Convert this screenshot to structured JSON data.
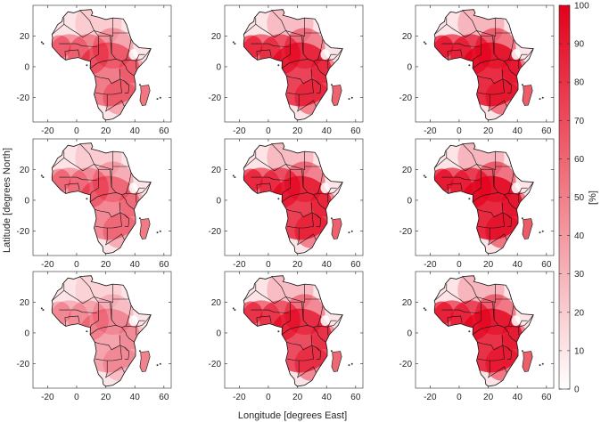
{
  "figure": {
    "xlabel": "Longitude [degrees East]",
    "ylabel": "Latitude [degrees North]",
    "colorbar": {
      "label": "[%]",
      "min": 0,
      "max": 100,
      "ticks": [
        "0",
        "10",
        "20",
        "30",
        "40",
        "50",
        "60",
        "70",
        "80",
        "90",
        "100"
      ],
      "color_low": "#ffffff",
      "color_high": "#e3001b"
    },
    "axes": {
      "x_ticks": [
        "-20",
        "0",
        "20",
        "40",
        "60"
      ],
      "y_ticks": [
        "20",
        "0",
        "-20"
      ],
      "xlim": [
        -30,
        65
      ],
      "ylim": [
        -36,
        40
      ]
    },
    "panels": [
      {
        "row": 1,
        "col": 1,
        "intensity": 0.45
      },
      {
        "row": 1,
        "col": 2,
        "intensity": 0.7
      },
      {
        "row": 1,
        "col": 3,
        "intensity": 0.8
      },
      {
        "row": 2,
        "col": 1,
        "intensity": 0.4
      },
      {
        "row": 2,
        "col": 2,
        "intensity": 0.72
      },
      {
        "row": 2,
        "col": 3,
        "intensity": 0.82
      },
      {
        "row": 3,
        "col": 1,
        "intensity": 0.28
      },
      {
        "row": 3,
        "col": 2,
        "intensity": 0.66
      },
      {
        "row": 3,
        "col": 3,
        "intensity": 0.78
      }
    ]
  }
}
